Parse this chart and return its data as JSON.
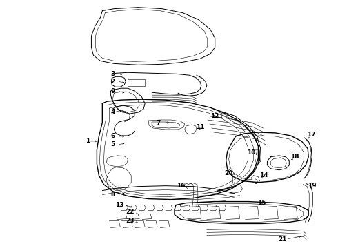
{
  "bg_color": "#ffffff",
  "line_color": "#000000",
  "fig_width": 4.9,
  "fig_height": 3.6,
  "dpi": 100,
  "lw_thin": 0.4,
  "lw_med": 0.7,
  "lw_thick": 1.0
}
